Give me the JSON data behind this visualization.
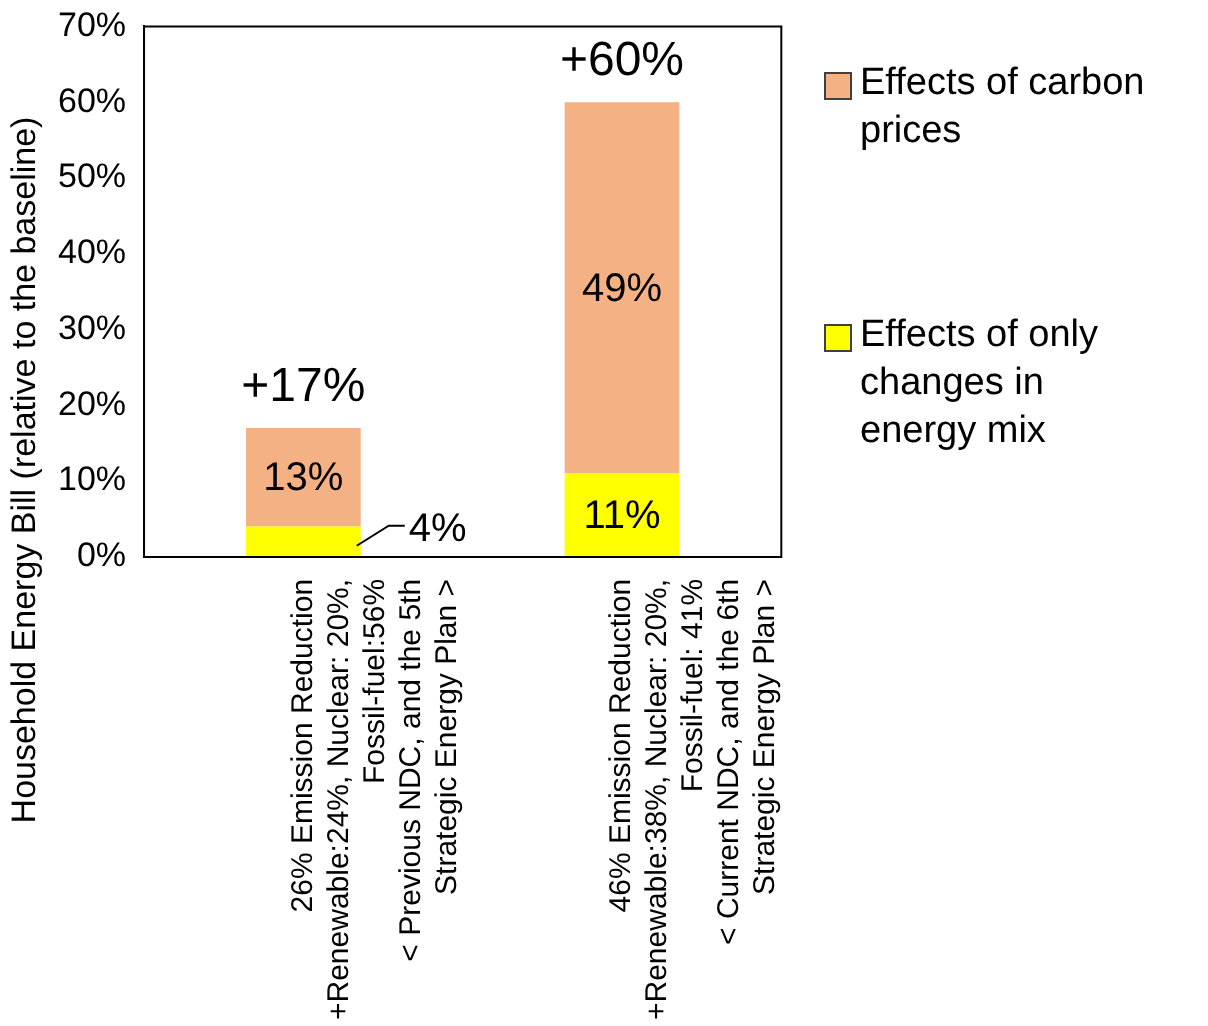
{
  "chart_data": {
    "type": "bar",
    "stacked": true,
    "ylabel": "Household Energy Bill (relative to the baseline)",
    "categories": [
      "26% Emission Reduction\n+Renewable:24%, Nuclear: 20%,\nFossil-fuel:56%\n< Previous NDC, and the 5th\nStrategic Energy Plan >",
      "46% Emission Reduction\n+Renewable:38%, Nuclear: 20%,\nFossil-fuel: 41%\n< Current NDC, and the 6th\nStrategic Energy Plan >"
    ],
    "series": [
      {
        "name": "Effects of only changes in energy mix",
        "color": "#ffff00",
        "values": [
          4,
          11
        ],
        "value_labels": [
          "4%",
          "11%"
        ]
      },
      {
        "name": "Effects of carbon prices",
        "color": "#f4b183",
        "values": [
          13,
          49
        ],
        "value_labels": [
          "13%",
          "49%"
        ]
      }
    ],
    "totals": [
      "+17%",
      "+60%"
    ],
    "ylim": [
      0,
      70
    ],
    "yticks": [
      {
        "value": 0,
        "label": "0%"
      },
      {
        "value": 10,
        "label": "10%"
      },
      {
        "value": 20,
        "label": "20%"
      },
      {
        "value": 30,
        "label": "30%"
      },
      {
        "value": 40,
        "label": "40%"
      },
      {
        "value": 50,
        "label": "50%"
      },
      {
        "value": 60,
        "label": "60%"
      },
      {
        "value": 70,
        "label": "70%"
      }
    ],
    "grid": false,
    "legend": "right"
  }
}
